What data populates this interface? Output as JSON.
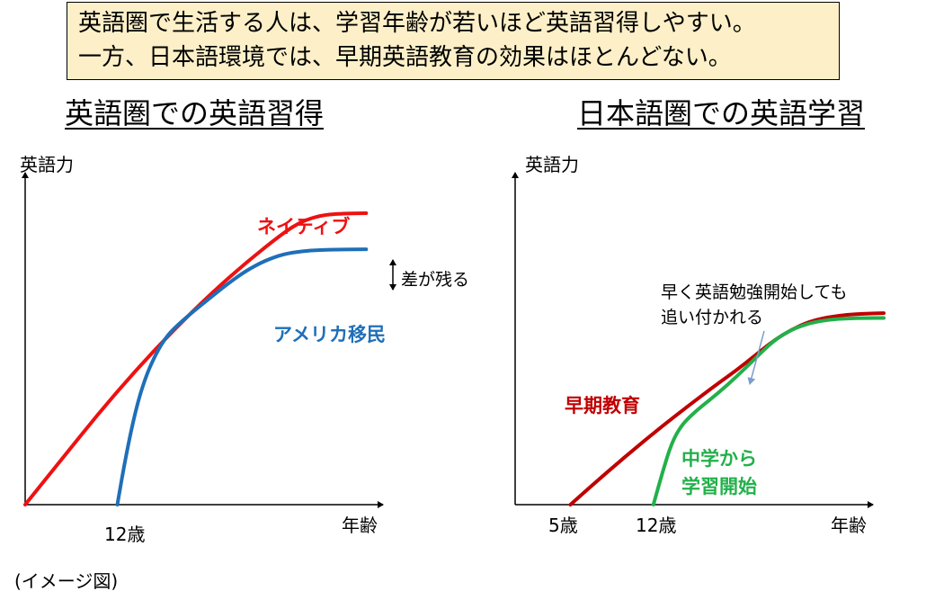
{
  "summary": {
    "line1": "英語圏で生活する人は、学習年齢が若いほど英語習得しやすい。",
    "line2": "一方、日本語環境では、早期英語教育の効果はほとんどない。"
  },
  "colors": {
    "summary_background": "#fdf0c8",
    "native": "#ee1111",
    "immigrant": "#1f6fb8",
    "early_education": "#c00000",
    "junior_high": "#22b04a",
    "pointer_arrow": "#7f9ccf"
  },
  "footnote": "(イメージ図)",
  "chart_data": [
    {
      "type": "line",
      "title": "英語圏での英語習得",
      "xlabel": "年齢",
      "ylabel": "英語力",
      "xlim": [
        0,
        20
      ],
      "ylim": [
        0,
        100
      ],
      "grid": false,
      "x_ticks": [
        {
          "value": 5,
          "label": "12歳"
        }
      ],
      "series": [
        {
          "name": "ネイティブ",
          "color": "#ee1111",
          "x": [
            0,
            2,
            4,
            6,
            8,
            10,
            12,
            14,
            15,
            16,
            17,
            18.5
          ],
          "y": [
            0,
            14,
            28,
            41,
            53,
            64,
            74,
            83,
            86.5,
            88.3,
            88.9,
            89
          ]
        },
        {
          "name": "アメリカ移民",
          "color": "#1f6fb8",
          "x": [
            5,
            5.5,
            6,
            6.5,
            7,
            7.5,
            8,
            9,
            10,
            11,
            12,
            13,
            14,
            15,
            16,
            17,
            18.5
          ],
          "y": [
            0,
            16,
            29,
            38.5,
            45,
            50,
            53.5,
            58.5,
            63,
            67.5,
            71.5,
            74.5,
            76.5,
            77.4,
            77.8,
            77.9,
            78
          ]
        }
      ],
      "annotations": [
        {
          "text": "差が残る",
          "type": "double-arrow",
          "between": [
            "ネイティブ",
            "アメリカ移民"
          ]
        }
      ]
    },
    {
      "type": "line",
      "title": "日本語圏での英語学習",
      "xlabel": "年齢",
      "ylabel": "英語力",
      "xlim": [
        0,
        20
      ],
      "ylim": [
        0,
        100
      ],
      "grid": false,
      "x_ticks": [
        {
          "value": 3,
          "label": "5歳"
        },
        {
          "value": 7.5,
          "label": "12歳"
        }
      ],
      "series": [
        {
          "name": "早期教育",
          "color": "#c00000",
          "x": [
            3,
            5,
            7,
            9,
            11,
            12,
            13,
            14,
            15,
            16,
            17,
            18,
            19,
            20
          ],
          "y": [
            0,
            10,
            19.5,
            28.5,
            37,
            41,
            45.5,
            50,
            53.5,
            56,
            57.3,
            58,
            58.3,
            58.5
          ]
        },
        {
          "name": "中学から学習開始",
          "color": "#22b04a",
          "x": [
            7.5,
            8,
            8.5,
            9,
            9.5,
            10,
            11,
            12,
            13,
            14,
            15,
            16,
            17,
            18,
            19,
            20
          ],
          "y": [
            0,
            10,
            19,
            24,
            27,
            29.5,
            34,
            39,
            44.5,
            50,
            53.5,
            55.5,
            56.5,
            56.9,
            57,
            57
          ]
        }
      ],
      "annotations": [
        {
          "text": "早く英語勉強開始しても",
          "type": "callout-line1"
        },
        {
          "text": "追い付かれる",
          "type": "callout-line2"
        }
      ]
    }
  ]
}
